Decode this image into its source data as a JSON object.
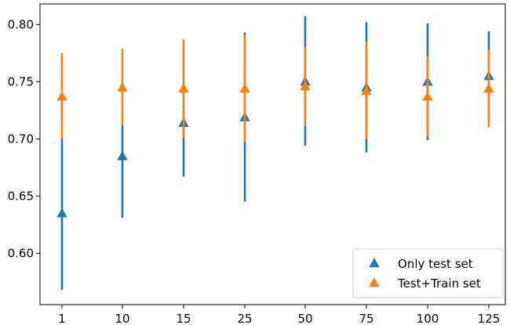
{
  "chart_data": {
    "type": "scatter",
    "style": "errorbar",
    "categories": [
      "1",
      "10",
      "15",
      "25",
      "50",
      "75",
      "100",
      "125"
    ],
    "ylim": [
      0.555,
      0.818
    ],
    "yticks": [
      0.6,
      0.65,
      0.7,
      0.75,
      0.8
    ],
    "ytick_labels": [
      "0.60",
      "0.65",
      "0.70",
      "0.75",
      "0.80"
    ],
    "grid": false,
    "legend_position": "lower-right",
    "series": [
      {
        "name": "Only test set",
        "color": "#1f77b4",
        "marker": "triangle-up",
        "values": [
          0.635,
          0.685,
          0.714,
          0.719,
          0.75,
          0.745,
          0.75,
          0.755
        ],
        "lower": [
          0.568,
          0.631,
          0.667,
          0.645,
          0.694,
          0.688,
          0.699,
          0.716
        ],
        "upper": [
          0.701,
          0.712,
          0.724,
          0.793,
          0.807,
          0.802,
          0.801,
          0.794
        ]
      },
      {
        "name": "Test+Train set",
        "color": "#ff7f0e",
        "marker": "triangle-up",
        "values": [
          0.737,
          0.745,
          0.744,
          0.744,
          0.746,
          0.742,
          0.737,
          0.744
        ],
        "lower": [
          0.7,
          0.712,
          0.701,
          0.697,
          0.711,
          0.7,
          0.702,
          0.71
        ],
        "upper": [
          0.775,
          0.779,
          0.787,
          0.791,
          0.78,
          0.785,
          0.772,
          0.778
        ]
      }
    ]
  }
}
